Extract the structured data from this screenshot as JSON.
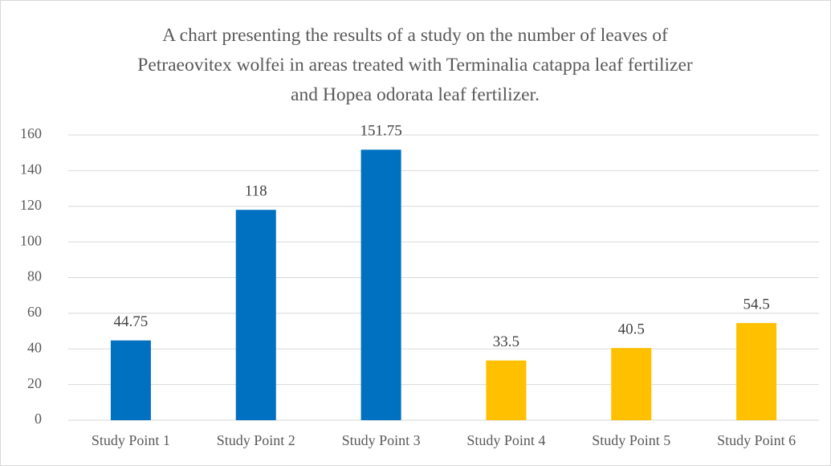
{
  "chart_data": {
    "type": "bar",
    "title": "A chart presenting the results of a study on the number of leaves of Petraeovitex wolfei in areas treated with Terminalia catappa leaf fertilizer and Hopea odorata leaf fertilizer.",
    "categories": [
      "Study Point 1",
      "Study Point 2",
      "Study Point 3",
      "Study Point 4",
      "Study Point 5",
      "Study Point 6"
    ],
    "values": [
      44.75,
      118,
      151.75,
      33.5,
      40.5,
      54.5
    ],
    "colors": [
      "#0070c0",
      "#0070c0",
      "#0070c0",
      "#ffc000",
      "#ffc000",
      "#ffc000"
    ],
    "ylim": [
      0,
      160
    ],
    "yticks": [
      0,
      20,
      40,
      60,
      80,
      100,
      120,
      140,
      160
    ],
    "grid": true
  }
}
